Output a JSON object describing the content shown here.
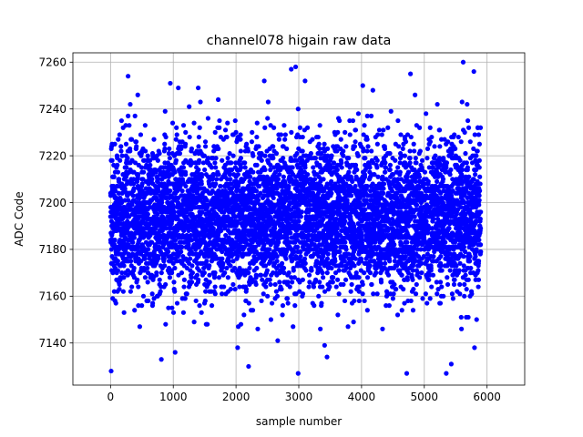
{
  "chart_data": {
    "type": "scatter",
    "title": "channel078 higain raw data",
    "xlabel": "sample number",
    "ylabel": "ADC Code",
    "xlim": [
      -600,
      6600
    ],
    "ylim": [
      7122,
      7264
    ],
    "x_ticks": [
      0,
      1000,
      2000,
      3000,
      4000,
      5000,
      6000
    ],
    "y_ticks": [
      7140,
      7160,
      7180,
      7200,
      7220,
      7240,
      7260
    ],
    "grid": true,
    "marker_color": "#0000ff",
    "marker": "filled-circle",
    "series": [
      {
        "name": "",
        "x_range": [
          0,
          5900
        ],
        "n_points": 5900,
        "bulk_center": 7194,
        "bulk_spread_sd": 16,
        "notable_points": [
          {
            "x": 10,
            "y": 7128
          },
          {
            "x": 280,
            "y": 7254
          },
          {
            "x": 810,
            "y": 7133
          },
          {
            "x": 1030,
            "y": 7136
          },
          {
            "x": 1080,
            "y": 7249
          },
          {
            "x": 2200,
            "y": 7130
          },
          {
            "x": 2450,
            "y": 7252
          },
          {
            "x": 2880,
            "y": 7257
          },
          {
            "x": 2950,
            "y": 7258
          },
          {
            "x": 2990,
            "y": 7127
          },
          {
            "x": 3100,
            "y": 7252
          },
          {
            "x": 3450,
            "y": 7134
          },
          {
            "x": 4020,
            "y": 7250
          },
          {
            "x": 4720,
            "y": 7127
          },
          {
            "x": 4780,
            "y": 7255
          },
          {
            "x": 5350,
            "y": 7127
          },
          {
            "x": 5430,
            "y": 7131
          },
          {
            "x": 5620,
            "y": 7260
          },
          {
            "x": 5790,
            "y": 7256
          },
          {
            "x": 5800,
            "y": 7138
          }
        ]
      }
    ]
  }
}
